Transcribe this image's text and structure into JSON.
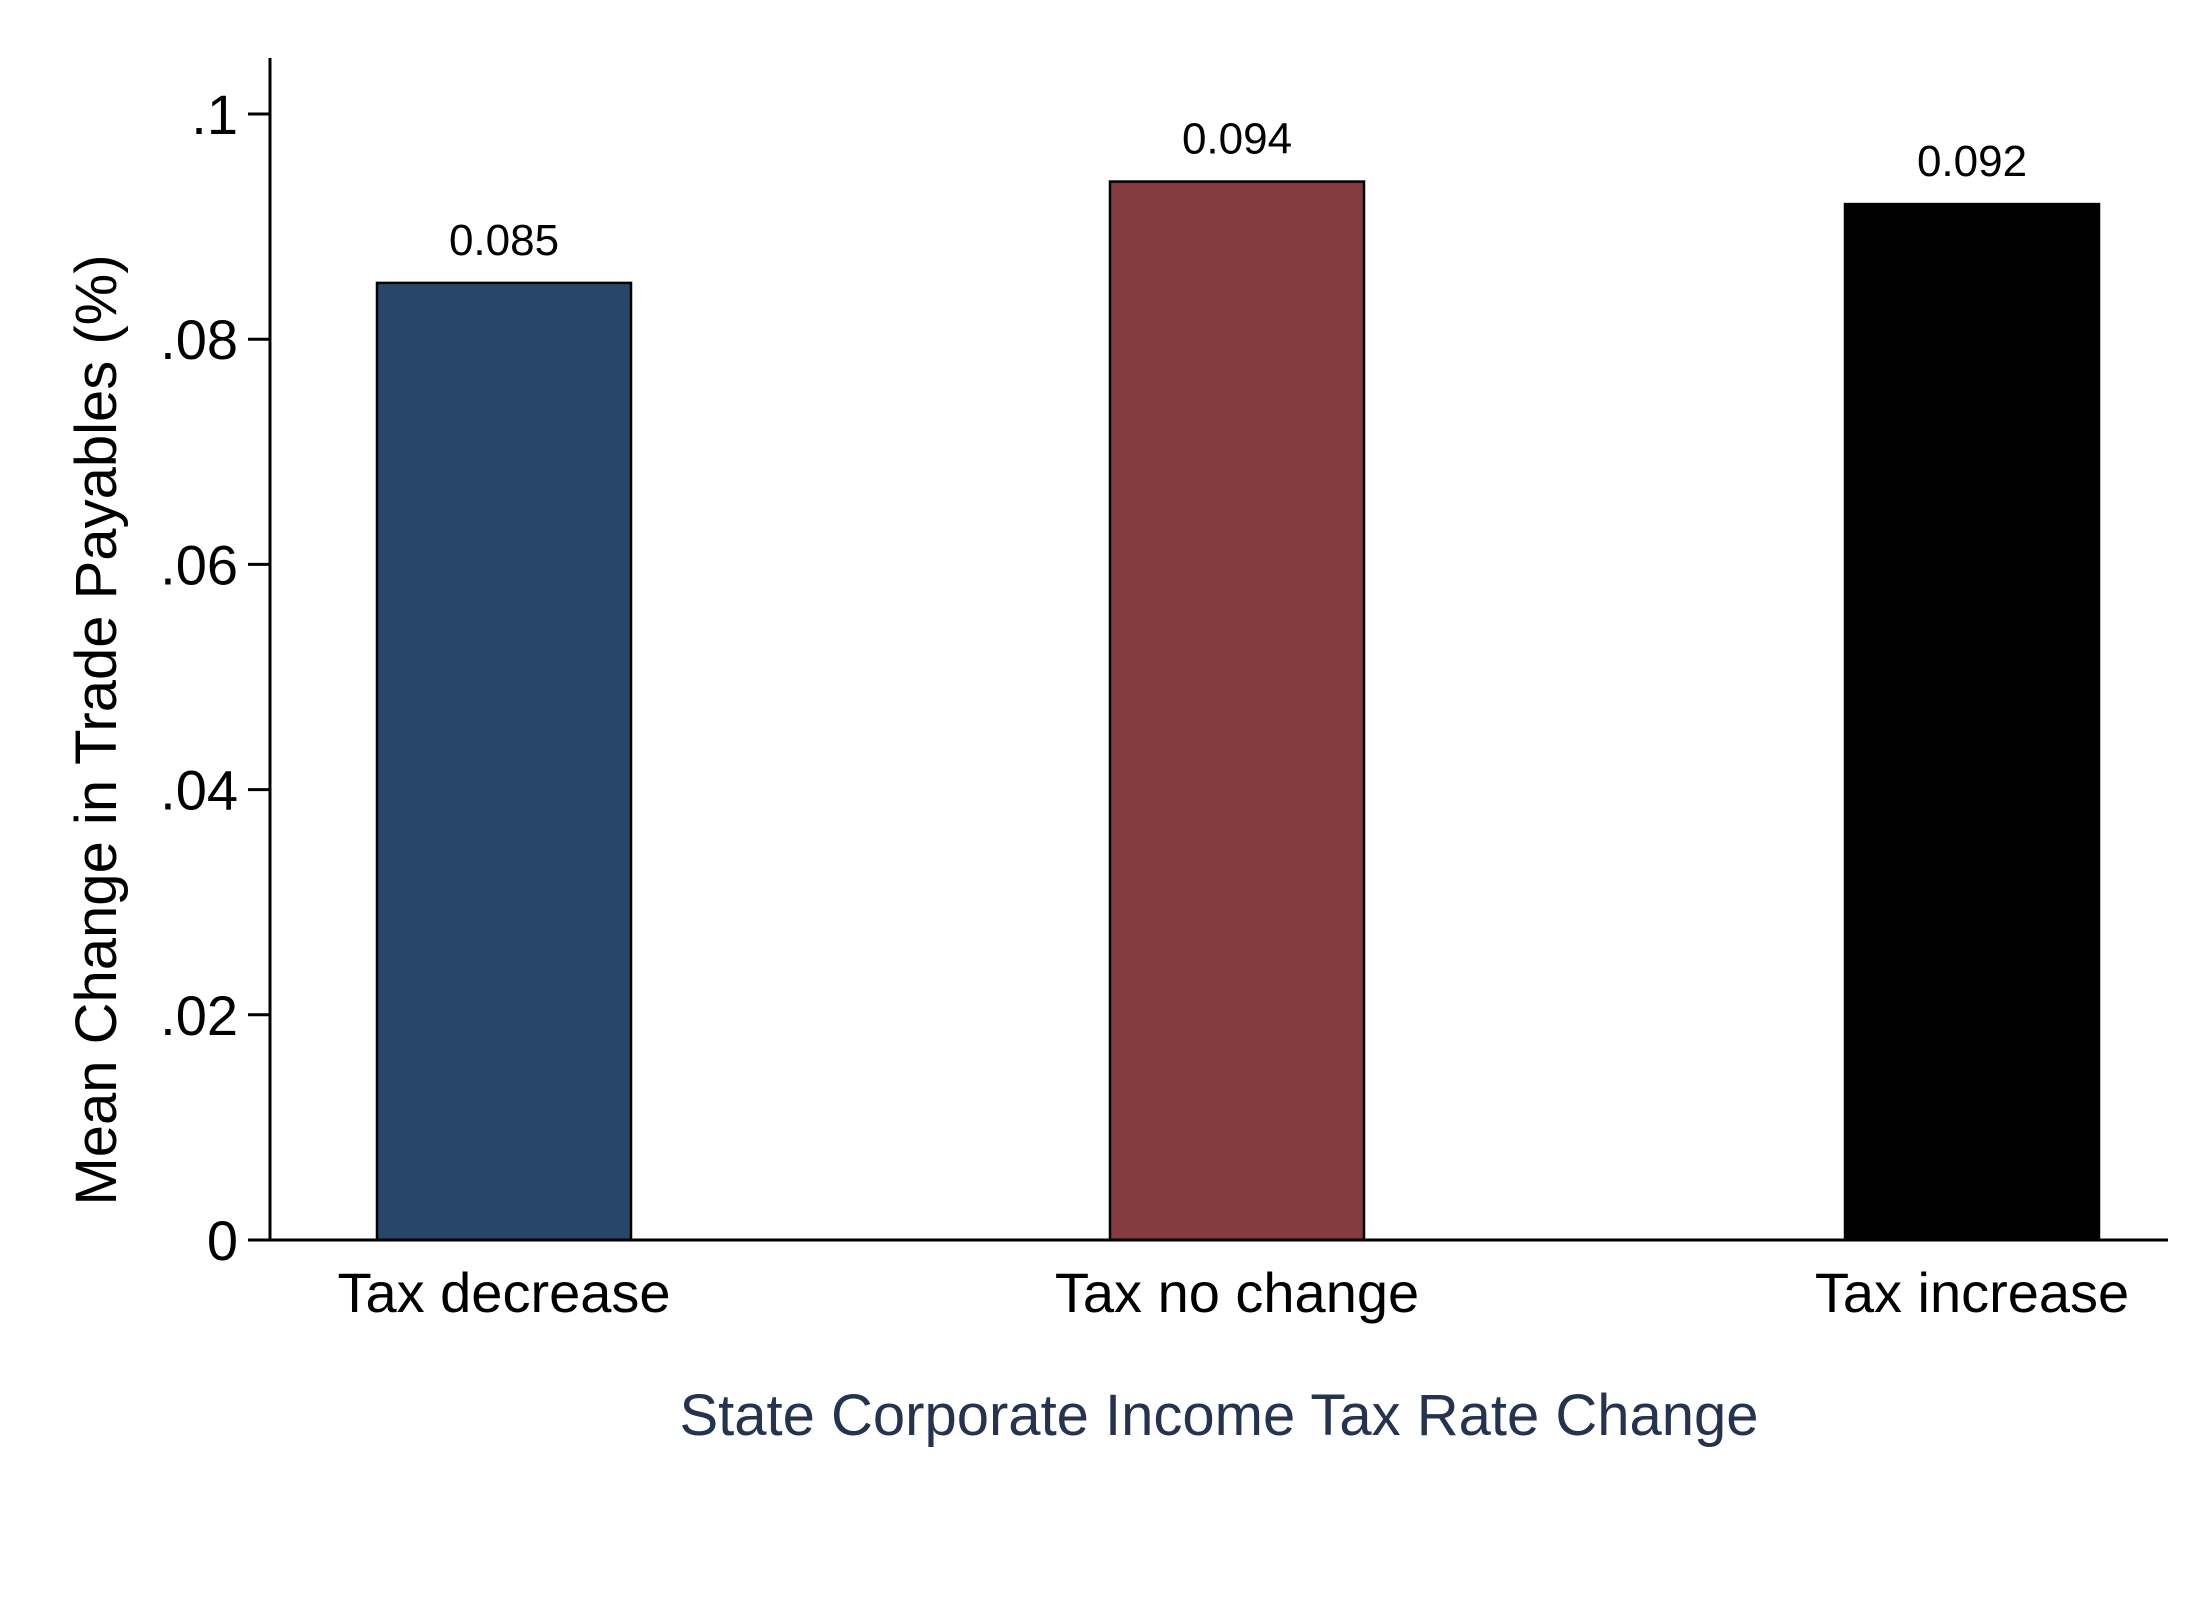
{
  "chart_data": {
    "type": "bar",
    "title": "",
    "xlabel": "State Corporate Income Tax Rate Change",
    "ylabel": "Mean Change in Trade Payables (%)",
    "categories": [
      "Tax decrease",
      "Tax no change",
      "Tax increase"
    ],
    "values": [
      0.085,
      0.094,
      0.092
    ],
    "data_labels": [
      "0.085",
      "0.094",
      "0.092"
    ],
    "bar_colors": [
      "#284669",
      "#843b40",
      "#000000"
    ],
    "xlabel_color": "#26334f",
    "ylim": [
      0,
      0.105
    ],
    "yticks": [
      0,
      0.02,
      0.04,
      0.06,
      0.08,
      0.1
    ],
    "ytick_labels": [
      "0",
      ".02",
      ".04",
      ".06",
      ".08",
      ".1"
    ],
    "grid": false,
    "legend": "none"
  }
}
